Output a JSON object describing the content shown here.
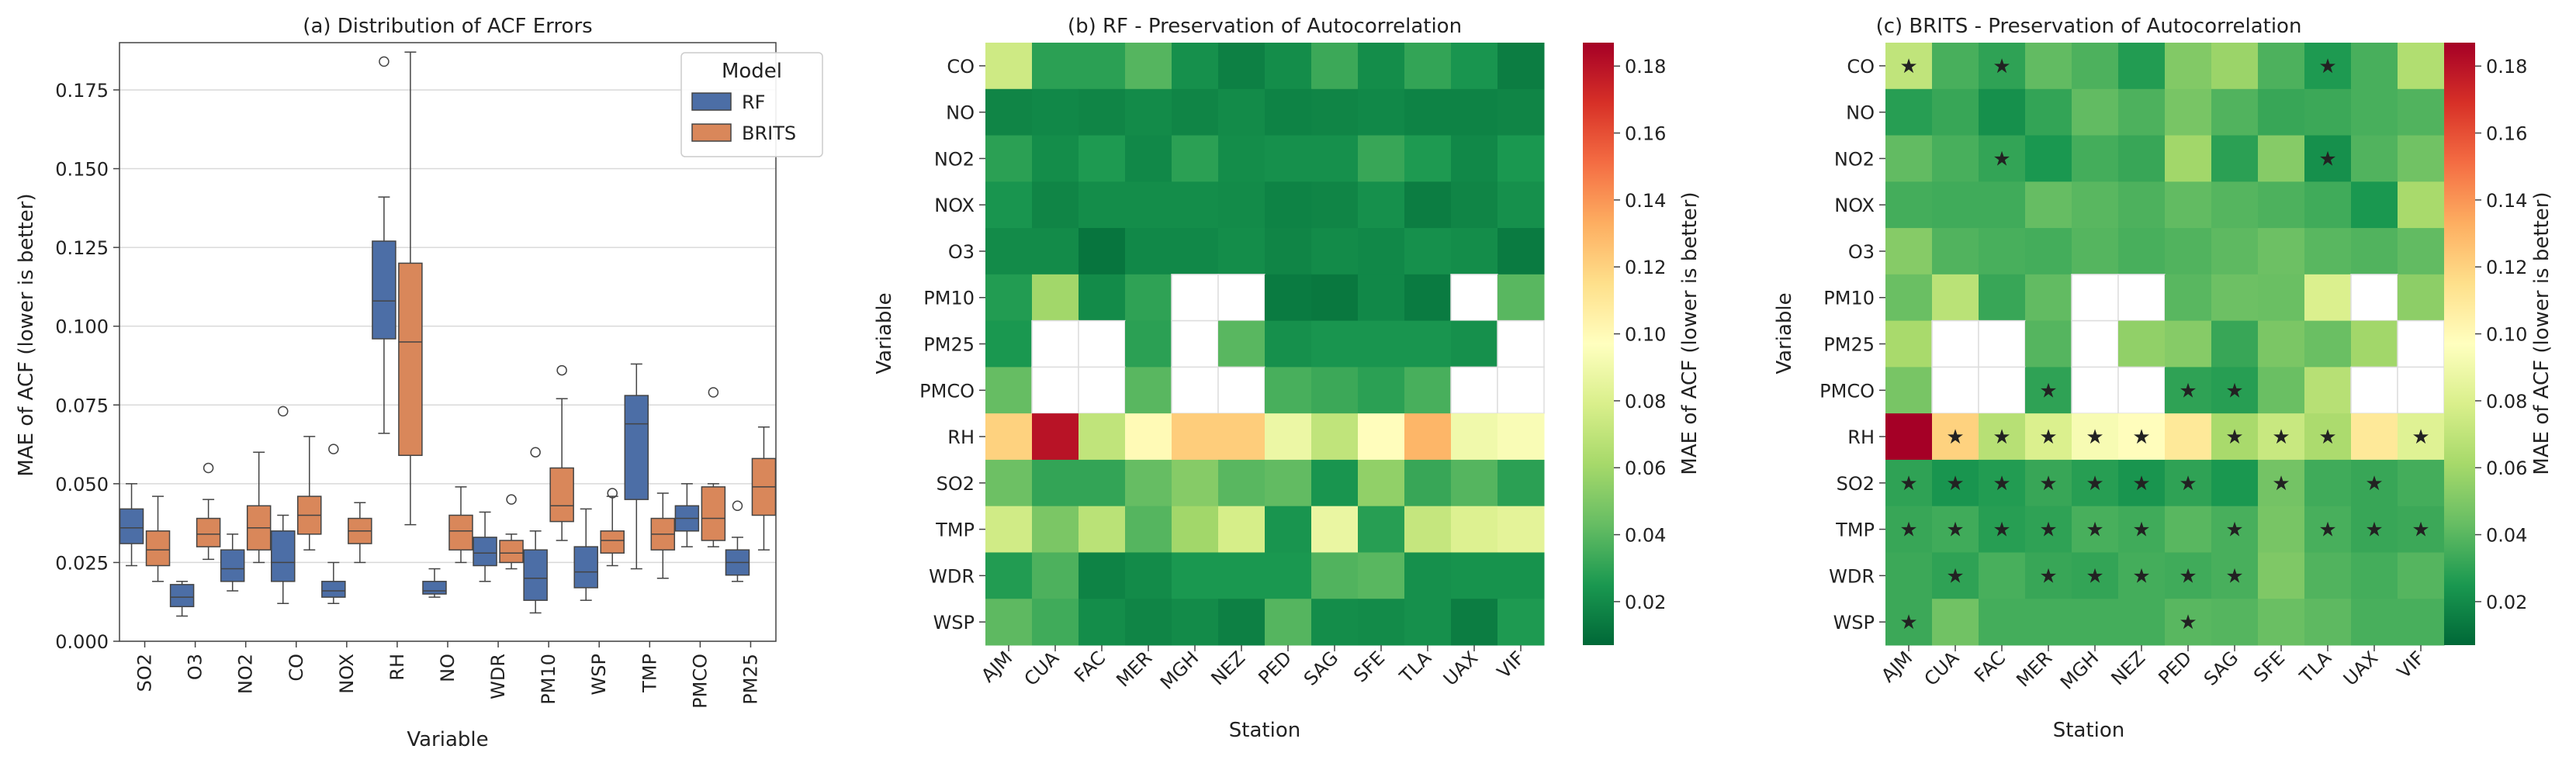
{
  "chart_data": [
    {
      "type": "box",
      "title": "(a) Distribution of ACF Errors",
      "xlabel": "Variable",
      "ylabel": "MAE of ACF (lower is better)",
      "ylim": [
        0,
        0.19
      ],
      "yticks": [
        "0.000",
        "0.025",
        "0.050",
        "0.075",
        "0.100",
        "0.125",
        "0.150",
        "0.175"
      ],
      "grid": true,
      "legend": {
        "title": "Model",
        "placement": "top-right"
      },
      "categories": [
        "SO2",
        "O3",
        "NO2",
        "CO",
        "NOX",
        "RH",
        "NO",
        "WDR",
        "PM10",
        "WSP",
        "TMP",
        "PMCO",
        "PM25"
      ],
      "series": [
        {
          "name": "RF",
          "color": "#4c6ea6",
          "boxes": [
            {
              "category": "SO2",
              "wlo": 0.024,
              "q1": 0.031,
              "med": 0.036,
              "q3": 0.042,
              "whi": 0.05,
              "out": []
            },
            {
              "category": "O3",
              "wlo": 0.008,
              "q1": 0.011,
              "med": 0.014,
              "q3": 0.018,
              "whi": 0.019,
              "out": []
            },
            {
              "category": "NO2",
              "wlo": 0.016,
              "q1": 0.019,
              "med": 0.023,
              "q3": 0.029,
              "whi": 0.034,
              "out": []
            },
            {
              "category": "CO",
              "wlo": 0.012,
              "q1": 0.019,
              "med": 0.025,
              "q3": 0.035,
              "whi": 0.04,
              "out": [
                0.073
              ]
            },
            {
              "category": "NOX",
              "wlo": 0.012,
              "q1": 0.014,
              "med": 0.016,
              "q3": 0.019,
              "whi": 0.025,
              "out": [
                0.061
              ]
            },
            {
              "category": "RH",
              "wlo": 0.066,
              "q1": 0.096,
              "med": 0.108,
              "q3": 0.127,
              "whi": 0.141,
              "out": [
                0.184
              ]
            },
            {
              "category": "NO",
              "wlo": 0.014,
              "q1": 0.015,
              "med": 0.016,
              "q3": 0.019,
              "whi": 0.023,
              "out": []
            },
            {
              "category": "WDR",
              "wlo": 0.019,
              "q1": 0.024,
              "med": 0.028,
              "q3": 0.033,
              "whi": 0.041,
              "out": []
            },
            {
              "category": "PM10",
              "wlo": 0.009,
              "q1": 0.013,
              "med": 0.02,
              "q3": 0.029,
              "whi": 0.035,
              "out": [
                0.06
              ]
            },
            {
              "category": "WSP",
              "wlo": 0.013,
              "q1": 0.017,
              "med": 0.022,
              "q3": 0.03,
              "whi": 0.042,
              "out": []
            },
            {
              "category": "TMP",
              "wlo": 0.023,
              "q1": 0.045,
              "med": 0.069,
              "q3": 0.078,
              "whi": 0.088,
              "out": []
            },
            {
              "category": "PMCO",
              "wlo": 0.03,
              "q1": 0.035,
              "med": 0.039,
              "q3": 0.043,
              "whi": 0.05,
              "out": []
            },
            {
              "category": "PM25",
              "wlo": 0.019,
              "q1": 0.021,
              "med": 0.025,
              "q3": 0.029,
              "whi": 0.033,
              "out": [
                0.043
              ]
            }
          ]
        },
        {
          "name": "BRITS",
          "color": "#d9875a",
          "boxes": [
            {
              "category": "SO2",
              "wlo": 0.019,
              "q1": 0.024,
              "med": 0.029,
              "q3": 0.035,
              "whi": 0.046,
              "out": []
            },
            {
              "category": "O3",
              "wlo": 0.026,
              "q1": 0.03,
              "med": 0.034,
              "q3": 0.039,
              "whi": 0.045,
              "out": [
                0.055
              ]
            },
            {
              "category": "NO2",
              "wlo": 0.025,
              "q1": 0.029,
              "med": 0.036,
              "q3": 0.043,
              "whi": 0.06,
              "out": []
            },
            {
              "category": "CO",
              "wlo": 0.029,
              "q1": 0.034,
              "med": 0.04,
              "q3": 0.046,
              "whi": 0.065,
              "out": []
            },
            {
              "category": "NOX",
              "wlo": 0.025,
              "q1": 0.031,
              "med": 0.035,
              "q3": 0.039,
              "whi": 0.044,
              "out": []
            },
            {
              "category": "RH",
              "wlo": 0.037,
              "q1": 0.059,
              "med": 0.095,
              "q3": 0.12,
              "whi": 0.187,
              "out": []
            },
            {
              "category": "NO",
              "wlo": 0.025,
              "q1": 0.029,
              "med": 0.035,
              "q3": 0.04,
              "whi": 0.049,
              "out": []
            },
            {
              "category": "WDR",
              "wlo": 0.023,
              "q1": 0.025,
              "med": 0.028,
              "q3": 0.032,
              "whi": 0.034,
              "out": [
                0.045
              ]
            },
            {
              "category": "PM10",
              "wlo": 0.032,
              "q1": 0.038,
              "med": 0.043,
              "q3": 0.055,
              "whi": 0.077,
              "out": [
                0.086
              ]
            },
            {
              "category": "WSP",
              "wlo": 0.024,
              "q1": 0.028,
              "med": 0.032,
              "q3": 0.035,
              "whi": 0.046,
              "out": [
                0.047
              ]
            },
            {
              "category": "TMP",
              "wlo": 0.02,
              "q1": 0.029,
              "med": 0.034,
              "q3": 0.039,
              "whi": 0.047,
              "out": []
            },
            {
              "category": "PMCO",
              "wlo": 0.03,
              "q1": 0.032,
              "med": 0.039,
              "q3": 0.049,
              "whi": 0.05,
              "out": [
                0.079
              ]
            },
            {
              "category": "PM25",
              "wlo": 0.029,
              "q1": 0.04,
              "med": 0.049,
              "q3": 0.058,
              "whi": 0.068,
              "out": []
            }
          ]
        }
      ]
    },
    {
      "type": "heatmap",
      "title": "(b) RF - Preservation of Autocorrelation",
      "xlabel": "Station",
      "ylabel": "Variable",
      "colorbar_label": "MAE of ACF (lower is better)",
      "colormap": "RdYlGn_r",
      "vmin": 0.007,
      "vmax": 0.187,
      "colorbar_ticks": [
        "0.02",
        "0.04",
        "0.06",
        "0.08",
        "0.10",
        "0.12",
        "0.14",
        "0.16",
        "0.18"
      ],
      "x": [
        "AJM",
        "CUA",
        "FAC",
        "MER",
        "MGH",
        "NEZ",
        "PED",
        "SAG",
        "SFE",
        "TLA",
        "UAX",
        "VIF"
      ],
      "y": [
        "CO",
        "NO",
        "NO2",
        "NOX",
        "O3",
        "PM10",
        "PM25",
        "PMCO",
        "RH",
        "SO2",
        "TMP",
        "WDR",
        "WSP"
      ],
      "values": [
        [
          0.075,
          0.029,
          0.029,
          0.039,
          0.022,
          0.016,
          0.021,
          0.033,
          0.021,
          0.031,
          0.024,
          0.015
        ],
        [
          0.018,
          0.019,
          0.018,
          0.02,
          0.018,
          0.02,
          0.017,
          0.018,
          0.019,
          0.017,
          0.017,
          0.018
        ],
        [
          0.029,
          0.021,
          0.026,
          0.019,
          0.029,
          0.021,
          0.022,
          0.022,
          0.032,
          0.026,
          0.019,
          0.025
        ],
        [
          0.024,
          0.018,
          0.021,
          0.021,
          0.021,
          0.02,
          0.017,
          0.018,
          0.022,
          0.015,
          0.018,
          0.022
        ],
        [
          0.02,
          0.02,
          0.012,
          0.019,
          0.019,
          0.021,
          0.018,
          0.02,
          0.019,
          0.022,
          0.021,
          0.014
        ],
        [
          0.027,
          0.06,
          0.02,
          0.03,
          null,
          null,
          0.014,
          0.013,
          0.019,
          0.014,
          null,
          0.04
        ],
        [
          0.025,
          null,
          null,
          0.029,
          null,
          0.04,
          0.022,
          0.024,
          0.024,
          0.024,
          0.022,
          null
        ],
        [
          0.043,
          null,
          null,
          0.04,
          null,
          null,
          0.036,
          0.033,
          0.029,
          0.036,
          null,
          null
        ],
        [
          0.12,
          0.18,
          0.07,
          0.1,
          0.122,
          0.122,
          0.088,
          0.07,
          0.098,
          0.13,
          0.09,
          0.094
        ],
        [
          0.045,
          0.031,
          0.031,
          0.043,
          0.052,
          0.04,
          0.042,
          0.024,
          0.055,
          0.032,
          0.039,
          0.029
        ],
        [
          0.076,
          0.049,
          0.068,
          0.039,
          0.06,
          0.078,
          0.024,
          0.087,
          0.028,
          0.072,
          0.081,
          0.084
        ],
        [
          0.027,
          0.037,
          0.017,
          0.02,
          0.025,
          0.025,
          0.025,
          0.038,
          0.04,
          0.022,
          0.023,
          0.023
        ],
        [
          0.041,
          0.034,
          0.021,
          0.018,
          0.02,
          0.016,
          0.039,
          0.021,
          0.02,
          0.022,
          0.015,
          0.026
        ]
      ]
    },
    {
      "type": "heatmap",
      "title": "(c) BRITS - Preservation of Autocorrelation",
      "xlabel": "Station",
      "ylabel": "Variable",
      "colorbar_label": "MAE of ACF (lower is better)",
      "colormap": "RdYlGn_r",
      "vmin": 0.007,
      "vmax": 0.187,
      "colorbar_ticks": [
        "0.02",
        "0.04",
        "0.06",
        "0.08",
        "0.10",
        "0.12",
        "0.14",
        "0.16",
        "0.18"
      ],
      "marker_glyph": "★",
      "x": [
        "AJM",
        "CUA",
        "FAC",
        "MER",
        "MGH",
        "NEZ",
        "PED",
        "SAG",
        "SFE",
        "TLA",
        "UAX",
        "VIF"
      ],
      "y": [
        "CO",
        "NO",
        "NO2",
        "NOX",
        "O3",
        "PM10",
        "PM25",
        "PMCO",
        "RH",
        "SO2",
        "TMP",
        "WDR",
        "WSP"
      ],
      "values": [
        [
          0.07,
          0.036,
          0.03,
          0.042,
          0.037,
          0.027,
          0.051,
          0.058,
          0.037,
          0.026,
          0.036,
          0.065
        ],
        [
          0.028,
          0.032,
          0.022,
          0.031,
          0.042,
          0.037,
          0.048,
          0.038,
          0.032,
          0.033,
          0.036,
          0.038
        ],
        [
          0.042,
          0.036,
          0.031,
          0.025,
          0.035,
          0.032,
          0.06,
          0.029,
          0.052,
          0.022,
          0.038,
          0.046
        ],
        [
          0.035,
          0.034,
          0.034,
          0.043,
          0.04,
          0.037,
          0.042,
          0.039,
          0.037,
          0.034,
          0.025,
          0.062
        ],
        [
          0.052,
          0.038,
          0.036,
          0.035,
          0.039,
          0.036,
          0.038,
          0.041,
          0.045,
          0.04,
          0.038,
          0.042
        ],
        [
          0.044,
          0.068,
          0.032,
          0.042,
          null,
          null,
          0.04,
          0.045,
          0.044,
          0.08,
          null,
          0.054
        ],
        [
          0.062,
          null,
          null,
          0.039,
          null,
          0.055,
          0.052,
          0.032,
          0.049,
          0.044,
          0.06,
          null
        ],
        [
          0.048,
          null,
          null,
          0.03,
          null,
          null,
          0.03,
          0.028,
          0.044,
          0.067,
          null,
          null
        ],
        [
          0.187,
          0.12,
          0.067,
          0.08,
          0.093,
          0.098,
          0.11,
          0.062,
          0.073,
          0.063,
          0.11,
          0.082
        ],
        [
          0.03,
          0.024,
          0.027,
          0.032,
          0.028,
          0.024,
          0.03,
          0.025,
          0.047,
          0.034,
          0.032,
          0.035
        ],
        [
          0.032,
          0.034,
          0.028,
          0.03,
          0.036,
          0.034,
          0.04,
          0.036,
          0.048,
          0.036,
          0.032,
          0.033
        ],
        [
          0.033,
          0.03,
          0.036,
          0.032,
          0.031,
          0.035,
          0.034,
          0.036,
          0.05,
          0.038,
          0.035,
          0.039
        ],
        [
          0.033,
          0.046,
          0.035,
          0.035,
          0.035,
          0.035,
          0.04,
          0.039,
          0.044,
          0.041,
          0.036,
          0.036
        ]
      ],
      "starred": [
        [
          1,
          0,
          1,
          0,
          0,
          0,
          0,
          0,
          0,
          1,
          0,
          0
        ],
        [
          0,
          0,
          0,
          0,
          0,
          0,
          0,
          0,
          0,
          0,
          0,
          0
        ],
        [
          0,
          0,
          1,
          0,
          0,
          0,
          0,
          0,
          0,
          1,
          0,
          0
        ],
        [
          0,
          0,
          0,
          0,
          0,
          0,
          0,
          0,
          0,
          0,
          0,
          0
        ],
        [
          0,
          0,
          0,
          0,
          0,
          0,
          0,
          0,
          0,
          0,
          0,
          0
        ],
        [
          0,
          0,
          0,
          0,
          0,
          0,
          0,
          0,
          0,
          0,
          0,
          0
        ],
        [
          0,
          0,
          0,
          0,
          0,
          0,
          0,
          0,
          0,
          0,
          0,
          0
        ],
        [
          0,
          0,
          0,
          1,
          0,
          0,
          1,
          1,
          0,
          0,
          0,
          0
        ],
        [
          0,
          1,
          1,
          1,
          1,
          1,
          0,
          1,
          1,
          1,
          0,
          1
        ],
        [
          1,
          1,
          1,
          1,
          1,
          1,
          1,
          0,
          1,
          0,
          1,
          0
        ],
        [
          1,
          1,
          1,
          1,
          1,
          1,
          0,
          1,
          0,
          1,
          1,
          1
        ],
        [
          0,
          1,
          0,
          1,
          1,
          1,
          1,
          1,
          0,
          0,
          0,
          0
        ],
        [
          1,
          0,
          0,
          0,
          0,
          0,
          1,
          0,
          0,
          0,
          0,
          0
        ]
      ]
    }
  ]
}
